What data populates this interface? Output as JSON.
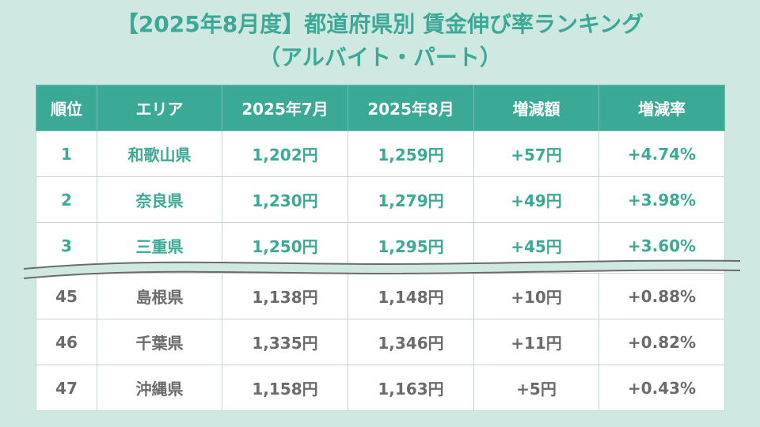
{
  "title": {
    "line1": "【2025年8月度】都道府県別 賃金伸び率ランキング",
    "line2": "（アルバイト・パート）"
  },
  "table": {
    "headers": [
      "順位",
      "エリア",
      "2025年7月",
      "2025年8月",
      "増減額",
      "増減率"
    ],
    "top_rows": [
      [
        "1",
        "和歌山県",
        "1,202円",
        "1,259円",
        "+57円",
        "+4.74%"
      ],
      [
        "2",
        "奈良県",
        "1,230円",
        "1,279円",
        "+49円",
        "+3.98%"
      ],
      [
        "3",
        "三重県",
        "1,250円",
        "1,295円",
        "+45円",
        "+3.60%"
      ]
    ],
    "bottom_rows": [
      [
        "45",
        "島根県",
        "1,138円",
        "1,148円",
        "+10円",
        "+0.88%"
      ],
      [
        "46",
        "千葉県",
        "1,335円",
        "1,346円",
        "+11円",
        "+0.82%"
      ],
      [
        "47",
        "沖縄県",
        "1,158円",
        "1,163円",
        "+5円",
        "+0.43%"
      ]
    ]
  },
  "colors": {
    "accent": "#3aa995",
    "background": "#cfe9e2",
    "muted_text": "#6b6b6b"
  }
}
